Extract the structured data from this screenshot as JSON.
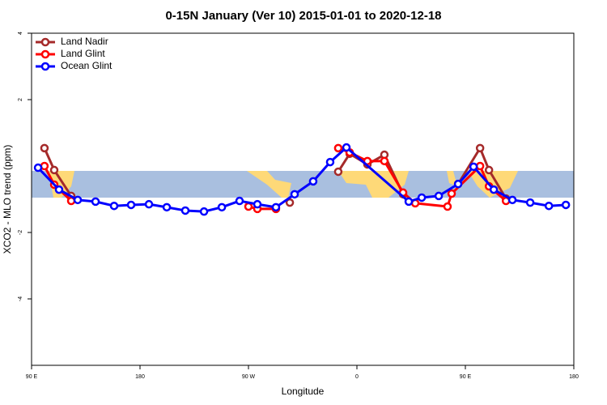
{
  "chart_data": {
    "type": "line",
    "title": "0-15N January (Ver 10)   2015-01-01 to 2020-12-18",
    "x_label": "Longitude",
    "y_label": "XCO2 - MLO trend (ppm)",
    "xlim": [
      90,
      540
    ],
    "ylim": [
      -6,
      4
    ],
    "xticks": [
      {
        "value": 90,
        "label": "90 E"
      },
      180,
      {
        "value": 270,
        "label": "90 W"
      },
      {
        "value": 360,
        "label": "0"
      },
      {
        "value": 450,
        "label": "90 E"
      },
      {
        "value": 540,
        "label": "180"
      }
    ],
    "yticks": [
      -4,
      -2,
      2,
      4
    ],
    "legend": "top-left",
    "series": [
      {
        "name": "Land Nadir",
        "color": "#a52a2a",
        "x": [
          100.7,
          108.8,
          122.9,
          null,
          304.3,
          null,
          344.5,
          354,
          368.7,
          382.8,
          398.3,
          null,
          444,
          462.2,
          469.6,
          483.7
        ],
        "values": [
          0.54,
          -0.12,
          -0.9,
          null,
          -1.1,
          null,
          -0.17,
          0.37,
          0.05,
          0.34,
          -0.85,
          null,
          -0.54,
          0.54,
          -0.12,
          -0.98
        ]
      },
      {
        "name": "Land Glint",
        "color": "#ff0000",
        "x": [
          100.7,
          108.8,
          122.9,
          null,
          270,
          277.4,
          292.8,
          null,
          344.5,
          354,
          368.7,
          382.8,
          398.3,
          408.4,
          435.2,
          438.6,
          462.2,
          469.6,
          483.7
        ],
        "values": [
          0,
          -0.56,
          -1.05,
          null,
          -1.22,
          -1.29,
          -1.29,
          null,
          0.54,
          0.41,
          0.15,
          0.15,
          -0.8,
          -1.12,
          -1.22,
          -0.83,
          0,
          -0.61,
          -1.05
        ]
      },
      {
        "name": "Ocean Glint",
        "color": "#0000ff",
        "x": [
          95.4,
          112.8,
          128.3,
          143.1,
          158.5,
          172.6,
          187.4,
          202.2,
          217.6,
          233.1,
          247.9,
          262.6,
          277.4,
          292.8,
          308.3,
          323.7,
          337.8,
          351.3,
          403,
          413.8,
          427.9,
          444,
          456.8,
          473.6,
          489,
          503.8,
          519.3,
          533.4
        ],
        "values": [
          -0.05,
          -0.71,
          -1.02,
          -1.07,
          -1.2,
          -1.17,
          -1.15,
          -1.24,
          -1.34,
          -1.37,
          -1.24,
          -1.05,
          -1.15,
          -1.24,
          -0.85,
          -0.46,
          0.12,
          0.56,
          -1.07,
          -0.95,
          -0.9,
          -0.54,
          -0.02,
          -0.71,
          -1.02,
          -1.1,
          -1.2,
          -1.17
        ]
      }
    ]
  }
}
